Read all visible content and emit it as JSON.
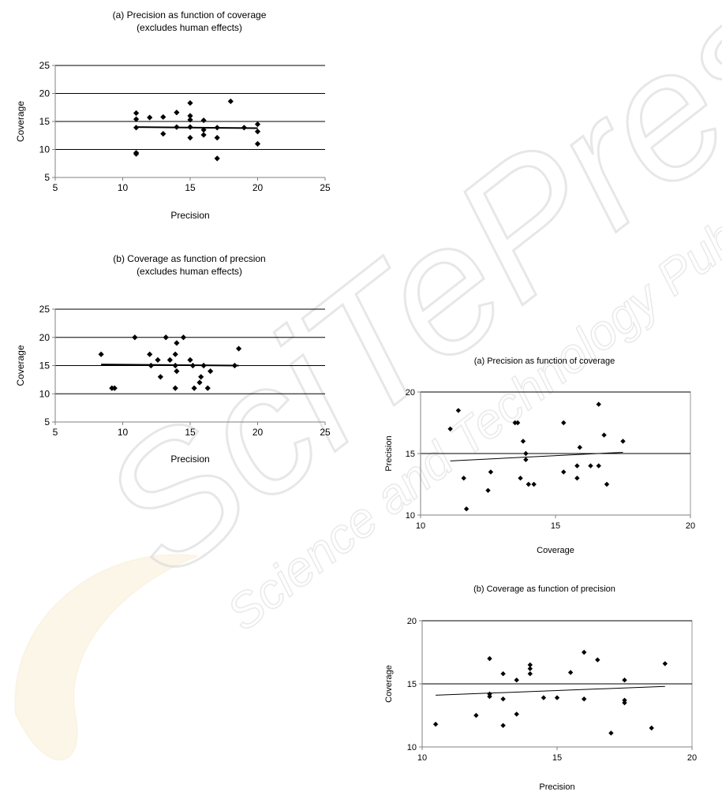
{
  "watermark": {
    "text": "SciTePress",
    "subtitle": "Science and Technology Publications"
  },
  "chart_data": [
    {
      "type": "scatter",
      "title": "(a) Precision as function of coverage",
      "subtitle": "(excludes human effects)",
      "xlabel": "Precision",
      "ylabel": "Coverage",
      "xlim": [
        5,
        25
      ],
      "ylim": [
        5,
        25
      ],
      "xticks": [
        5,
        10,
        15,
        20,
        25
      ],
      "yticks": [
        5,
        10,
        15,
        20,
        25
      ],
      "grid_y": true,
      "legend": "none",
      "marker_color": "#000000",
      "points": [
        {
          "x": 11,
          "y": 16.5
        },
        {
          "x": 11,
          "y": 15.4
        },
        {
          "x": 11,
          "y": 13.9
        },
        {
          "x": 11,
          "y": 9.4
        },
        {
          "x": 11,
          "y": 9.2
        },
        {
          "x": 12,
          "y": 15.7
        },
        {
          "x": 13,
          "y": 15.8
        },
        {
          "x": 13,
          "y": 12.8
        },
        {
          "x": 14,
          "y": 16.6
        },
        {
          "x": 14,
          "y": 14
        },
        {
          "x": 15,
          "y": 18.3
        },
        {
          "x": 15,
          "y": 16
        },
        {
          "x": 15,
          "y": 15.3
        },
        {
          "x": 15,
          "y": 14
        },
        {
          "x": 15,
          "y": 12.1
        },
        {
          "x": 16,
          "y": 15.2
        },
        {
          "x": 16,
          "y": 13.5
        },
        {
          "x": 16,
          "y": 12.6
        },
        {
          "x": 17,
          "y": 13.9
        },
        {
          "x": 17,
          "y": 12.1
        },
        {
          "x": 17,
          "y": 8.4
        },
        {
          "x": 18,
          "y": 18.6
        },
        {
          "x": 19,
          "y": 13.9
        },
        {
          "x": 20,
          "y": 14.5
        },
        {
          "x": 20,
          "y": 13.2
        },
        {
          "x": 20,
          "y": 11
        }
      ],
      "trendline": {
        "x": [
          11,
          20
        ],
        "y": [
          14,
          13.8
        ]
      }
    },
    {
      "type": "scatter",
      "title": "(b) Coverage as function of precsion",
      "subtitle": "(excludes human effects)",
      "xlabel": "Precision",
      "ylabel": "Coverage",
      "xlim": [
        5,
        25
      ],
      "ylim": [
        5,
        25
      ],
      "xticks": [
        5,
        10,
        15,
        20,
        25
      ],
      "yticks": [
        5,
        10,
        15,
        20,
        25
      ],
      "grid_y": true,
      "legend": "none",
      "marker_color": "#000000",
      "points": [
        {
          "x": 8.4,
          "y": 17
        },
        {
          "x": 9.2,
          "y": 11
        },
        {
          "x": 9.4,
          "y": 11
        },
        {
          "x": 10.9,
          "y": 20
        },
        {
          "x": 12,
          "y": 17
        },
        {
          "x": 12.1,
          "y": 15
        },
        {
          "x": 12.6,
          "y": 16
        },
        {
          "x": 12.8,
          "y": 13
        },
        {
          "x": 13.2,
          "y": 20
        },
        {
          "x": 13.5,
          "y": 16
        },
        {
          "x": 13.9,
          "y": 17
        },
        {
          "x": 13.9,
          "y": 15
        },
        {
          "x": 14,
          "y": 19
        },
        {
          "x": 14,
          "y": 14
        },
        {
          "x": 13.9,
          "y": 11
        },
        {
          "x": 14.5,
          "y": 20
        },
        {
          "x": 15,
          "y": 16
        },
        {
          "x": 15.2,
          "y": 15
        },
        {
          "x": 15.3,
          "y": 11
        },
        {
          "x": 15.7,
          "y": 12
        },
        {
          "x": 15.8,
          "y": 13
        },
        {
          "x": 16,
          "y": 15
        },
        {
          "x": 16.3,
          "y": 11
        },
        {
          "x": 16.5,
          "y": 14
        },
        {
          "x": 18.3,
          "y": 15
        },
        {
          "x": 18.6,
          "y": 18
        }
      ],
      "trendline": {
        "x": [
          8.4,
          18.6
        ],
        "y": [
          15.2,
          15
        ]
      }
    },
    {
      "type": "scatter",
      "title": "(a) Precision as function of coverage",
      "xlabel": "Coverage",
      "ylabel": "Precision",
      "xlim": [
        10,
        20
      ],
      "ylim": [
        10,
        20
      ],
      "xticks": [
        10,
        15,
        20
      ],
      "yticks": [
        10,
        15,
        20
      ],
      "grid_y": true,
      "legend": "none",
      "marker_color": "#000000",
      "points": [
        {
          "x": 11.1,
          "y": 17
        },
        {
          "x": 11.4,
          "y": 18.5
        },
        {
          "x": 11.6,
          "y": 13
        },
        {
          "x": 11.7,
          "y": 10.5
        },
        {
          "x": 12.5,
          "y": 12
        },
        {
          "x": 12.6,
          "y": 13.5
        },
        {
          "x": 13.5,
          "y": 17.5
        },
        {
          "x": 13.6,
          "y": 17.5
        },
        {
          "x": 13.7,
          "y": 13
        },
        {
          "x": 13.8,
          "y": 16
        },
        {
          "x": 13.9,
          "y": 15
        },
        {
          "x": 13.9,
          "y": 14.5
        },
        {
          "x": 14,
          "y": 12.5
        },
        {
          "x": 14.2,
          "y": 12.5
        },
        {
          "x": 15.3,
          "y": 17.5
        },
        {
          "x": 15.3,
          "y": 13.5
        },
        {
          "x": 15.8,
          "y": 14
        },
        {
          "x": 15.8,
          "y": 13
        },
        {
          "x": 15.9,
          "y": 15.5
        },
        {
          "x": 16.3,
          "y": 14
        },
        {
          "x": 16.6,
          "y": 19
        },
        {
          "x": 16.6,
          "y": 14
        },
        {
          "x": 16.8,
          "y": 16.5
        },
        {
          "x": 16.9,
          "y": 12.5
        },
        {
          "x": 17.5,
          "y": 16
        }
      ],
      "trendline": {
        "x": [
          11.1,
          17.5
        ],
        "y": [
          14.4,
          15.1
        ]
      }
    },
    {
      "type": "scatter",
      "title": "(b) Coverage as function of precision",
      "xlabel": "Precision",
      "ylabel": "Coverage",
      "xlim": [
        10,
        20
      ],
      "ylim": [
        10,
        20
      ],
      "xticks": [
        10,
        15,
        20
      ],
      "yticks": [
        10,
        15,
        20
      ],
      "grid_y": true,
      "legend": "none",
      "marker_color": "#000000",
      "points": [
        {
          "x": 10.5,
          "y": 11.8
        },
        {
          "x": 12,
          "y": 12.5
        },
        {
          "x": 12.5,
          "y": 17
        },
        {
          "x": 12.5,
          "y": 14.2
        },
        {
          "x": 12.5,
          "y": 14
        },
        {
          "x": 13,
          "y": 15.8
        },
        {
          "x": 13,
          "y": 13.8
        },
        {
          "x": 13,
          "y": 11.7
        },
        {
          "x": 13.5,
          "y": 15.3
        },
        {
          "x": 13.5,
          "y": 12.6
        },
        {
          "x": 14,
          "y": 16.5
        },
        {
          "x": 14,
          "y": 16.2
        },
        {
          "x": 14,
          "y": 15.8
        },
        {
          "x": 14.5,
          "y": 13.9
        },
        {
          "x": 15,
          "y": 13.9
        },
        {
          "x": 15.5,
          "y": 15.9
        },
        {
          "x": 16,
          "y": 17.5
        },
        {
          "x": 16,
          "y": 13.8
        },
        {
          "x": 16.5,
          "y": 16.9
        },
        {
          "x": 17,
          "y": 11.1
        },
        {
          "x": 17.5,
          "y": 15.3
        },
        {
          "x": 17.5,
          "y": 13.7
        },
        {
          "x": 17.5,
          "y": 13.5
        },
        {
          "x": 18.5,
          "y": 11.5
        },
        {
          "x": 19,
          "y": 16.6
        }
      ],
      "trendline": {
        "x": [
          10.5,
          19
        ],
        "y": [
          14.1,
          14.8
        ]
      }
    }
  ]
}
